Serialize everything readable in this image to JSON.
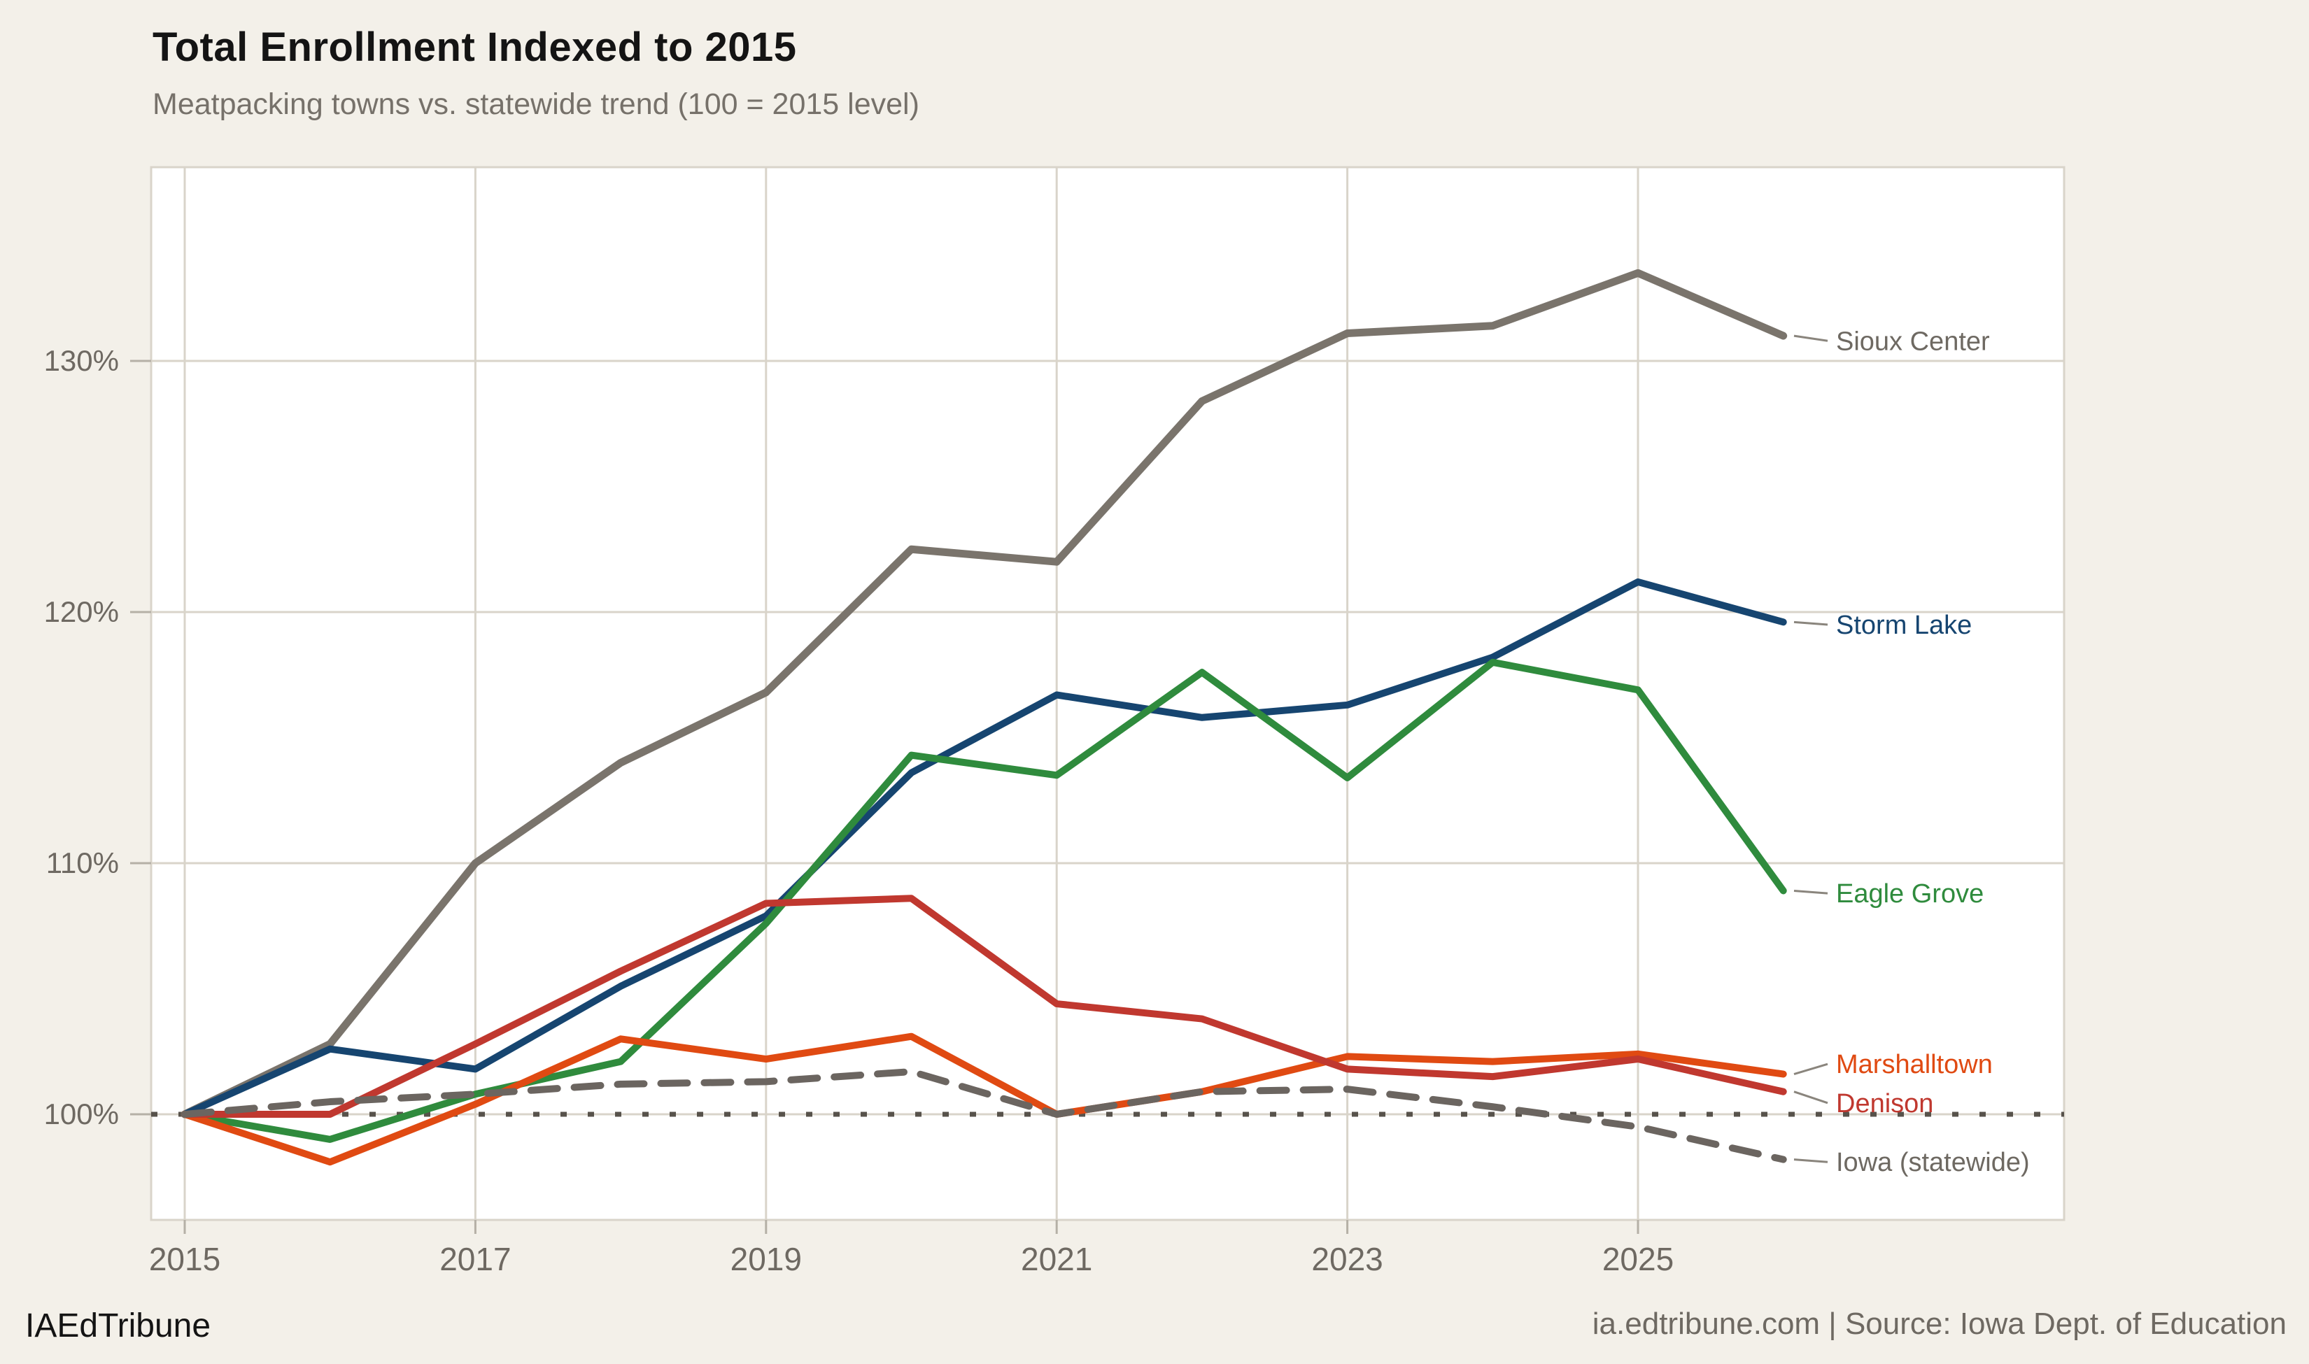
{
  "header": {
    "title": "Total Enrollment Indexed to 2015",
    "subtitle": "Meatpacking towns vs. statewide trend (100 = 2015 level)"
  },
  "footer": {
    "brand": "IAEdTribune",
    "source": "ia.edtribune.com | Source: Iowa Dept. of Education"
  },
  "chart_data": {
    "type": "line",
    "title": "Total Enrollment Indexed to 2015",
    "subtitle": "Meatpacking towns vs. statewide trend (100 = 2015 level)",
    "xlabel": "",
    "ylabel": "",
    "x": [
      2015,
      2016,
      2017,
      2018,
      2019,
      2020,
      2021,
      2022,
      2023,
      2024,
      2025,
      2026
    ],
    "xlim": [
      2014.77,
      2027.93
    ],
    "ylim": [
      95.8,
      137.7
    ],
    "grid": "on",
    "legend_position": "right-end-labels",
    "x_ticks": [
      {
        "year": 2015,
        "label": "2015"
      },
      {
        "year": 2017,
        "label": "2017"
      },
      {
        "year": 2019,
        "label": "2019"
      },
      {
        "year": 2021,
        "label": "2021"
      },
      {
        "year": 2023,
        "label": "2023"
      },
      {
        "year": 2025,
        "label": "2025"
      }
    ],
    "y_ticks": [
      {
        "value": 100,
        "label": "100%"
      },
      {
        "value": 110,
        "label": "110%"
      },
      {
        "value": 120,
        "label": "120%"
      },
      {
        "value": 130,
        "label": "130%"
      }
    ],
    "reference_line": {
      "value": 100,
      "style": "dotted",
      "color": "#57524b"
    },
    "series": [
      {
        "name": "Sioux Center",
        "color": "#7a746c",
        "label_color": "#6e6962",
        "style": "solid",
        "width": 11,
        "label_y": 130.8,
        "values": [
          100,
          102.8,
          110.0,
          114.0,
          116.8,
          122.5,
          122.0,
          128.4,
          131.1,
          131.4,
          133.5,
          131.0
        ]
      },
      {
        "name": "Storm Lake",
        "color": "#164570",
        "label_color": "#164570",
        "style": "solid",
        "width": 10,
        "label_y": 119.5,
        "values": [
          100,
          102.6,
          101.8,
          105.1,
          107.9,
          113.6,
          116.7,
          115.8,
          116.3,
          118.2,
          121.2,
          119.6
        ]
      },
      {
        "name": "Eagle Grove",
        "color": "#2f8b3d",
        "label_color": "#2f8b3d",
        "style": "solid",
        "width": 10,
        "label_y": 108.8,
        "values": [
          100,
          99.0,
          100.8,
          102.1,
          107.6,
          114.3,
          113.5,
          117.6,
          113.4,
          118.0,
          116.9,
          108.9
        ]
      },
      {
        "name": "Marshalltown",
        "color": "#e04a12",
        "label_color": "#e04a12",
        "style": "solid",
        "width": 10,
        "label_y": 102.0,
        "values": [
          100,
          98.1,
          100.4,
          103.0,
          102.2,
          103.1,
          100.0,
          100.9,
          102.3,
          102.1,
          102.4,
          101.6
        ]
      },
      {
        "name": "Denison",
        "color": "#c0382f",
        "label_color": "#c0382f",
        "style": "solid",
        "width": 10,
        "label_y": 100.45,
        "values": [
          100,
          100.0,
          102.8,
          105.7,
          108.4,
          108.6,
          104.4,
          103.8,
          101.8,
          101.5,
          102.2,
          100.9
        ]
      },
      {
        "name": "Iowa (statewide)",
        "color": "#6b6560",
        "label_color": "#6e6962",
        "style": "dashed",
        "width": 10,
        "label_y": 98.1,
        "values": [
          100,
          100.5,
          100.8,
          101.2,
          101.3,
          101.7,
          100.0,
          100.9,
          101.0,
          100.3,
          99.5,
          98.2
        ]
      }
    ]
  }
}
